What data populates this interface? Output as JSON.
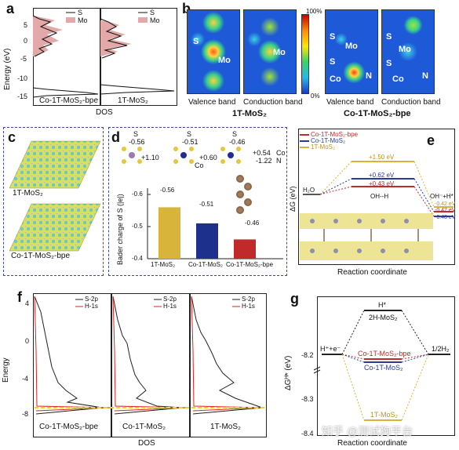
{
  "panel_labels": {
    "a": "a",
    "b": "b",
    "c": "c",
    "d": "d",
    "e": "e",
    "f": "f",
    "g": "g"
  },
  "a": {
    "ylabel": "Energy (eV)",
    "xlabel": "DOS",
    "yticks": [
      "5",
      "0",
      "-5",
      "-10",
      "-15"
    ],
    "legend": {
      "s": "S",
      "mo": "Mo"
    },
    "left_name": "Co-1T-MoS₂-bpe",
    "right_name": "1T-MoS₂",
    "colors": {
      "s": "#111111",
      "mo": "#d89a9a"
    }
  },
  "b": {
    "labels_1t": {
      "S": "S",
      "Mo": "Mo"
    },
    "labels_co": {
      "S1": "S",
      "Mo": "Mo",
      "S2": "S",
      "Co": "Co",
      "N": "N"
    },
    "valence": "Valence band",
    "conduction": "Conduction band",
    "valence2": "Valence band",
    "conduction2": "Conduction band",
    "group1": "1T-MoS₂",
    "group2": "Co-1T-MoS₂-bpe",
    "scale_top": "100%",
    "scale_bottom": "0%"
  },
  "c": {
    "top": "1T-MoS₂",
    "bottom": "Co-1T-MoS₂-bpe"
  },
  "d": {
    "ylabel": "Bader charge of S (|e|)",
    "yticks": [
      "-0.4",
      "-0.5",
      "-0.6"
    ],
    "categories": [
      "1T-MoS₂",
      "Co-1T-MoS₂",
      "Co-1T-MoS₂-bpe"
    ],
    "values": [
      -0.56,
      -0.51,
      -0.46
    ],
    "value_labels": [
      "-0.56",
      "-0.51",
      "-0.46"
    ],
    "colors": [
      "#d8b43a",
      "#1f2f8c",
      "#c02a2a"
    ],
    "struct1": {
      "s": "S",
      "sv": "-0.56",
      "mo": "Mo",
      "mov": "+1.10"
    },
    "struct2": {
      "s": "S",
      "sv": "-0.51",
      "co": "Co",
      "cov": "+0.60"
    },
    "struct3": {
      "s": "S",
      "sv": "-0.46",
      "co": "Co",
      "cov": "+0.54",
      "n": "N",
      "nv": "-1.22"
    }
  },
  "e": {
    "legend": [
      "Co-1T-MoS₂-bpe",
      "Co-1T-MoS₂",
      "1T-MoS₂"
    ],
    "colors": [
      "#c02a2a",
      "#2b3a9a",
      "#d8b43a"
    ],
    "ylabel": "ΔG (eV)",
    "xlabel": "Reaction coordinate",
    "barriers": [
      "+1.50 eV",
      "+0.62 eV",
      "+0.43 eV"
    ],
    "final": [
      "-0.42 eV",
      "-0.47 eV",
      "-0.48 eV"
    ],
    "h2o": "H₂O",
    "ohh": "OH--H",
    "end": "OH⁻+H*"
  },
  "f": {
    "ylabel": "Energy",
    "xlabel": "DOS",
    "yticks": [
      "4",
      "0",
      "-4",
      "-8"
    ],
    "legend": [
      "S-2p",
      "H-1s"
    ],
    "names": [
      "Co-1T-MoS₂-bpe",
      "Co-1T-MoS₂",
      "1T-MoS₂"
    ]
  },
  "g": {
    "ylabel": "ΔGᴴ* (eV)",
    "xlabel": "Reaction coordinate",
    "yticks": [
      "-8.2",
      "-8.3",
      "-8.4"
    ],
    "hstar": "H*",
    "h2mos2": "2H-MoS₂",
    "hplus": "H⁺+e⁻",
    "half": "1/2H₂",
    "cobpe": "Co-1T-MoS₂-bpe",
    "co": "Co-1T-MoS₂",
    "t1": "1T-MoS₂"
  },
  "watermark": "知乎 @测试狗平台"
}
